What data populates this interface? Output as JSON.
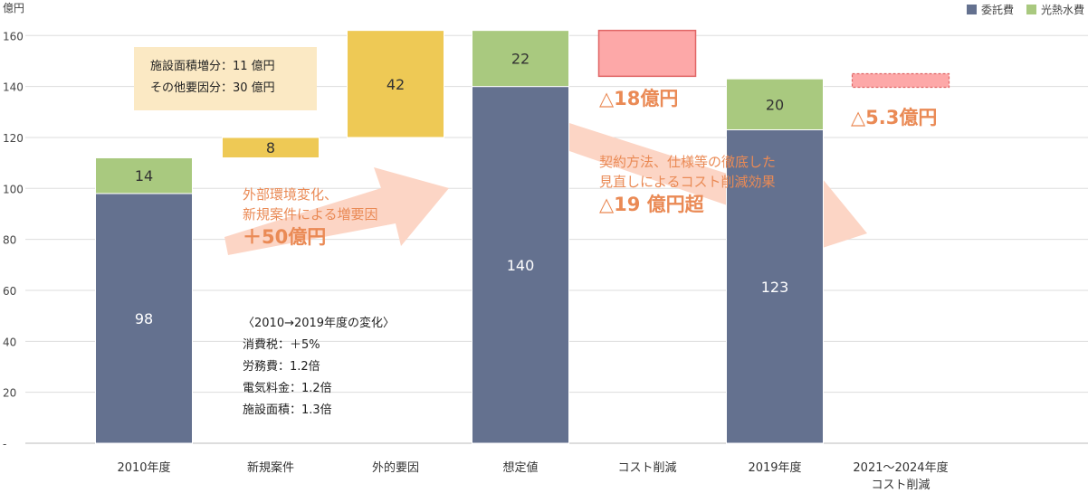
{
  "chart_data": {
    "type": "bar",
    "subtype": "waterfall-stacked",
    "y_unit_label": "億円",
    "ylim": [
      0,
      160
    ],
    "y_ticks": [
      "-",
      "20",
      "40",
      "60",
      "80",
      "100",
      "120",
      "140",
      "160"
    ],
    "grid": true,
    "legend_position": "top-right",
    "categories": [
      "2010年度",
      "新規案件",
      "外的要因",
      "想定値",
      "コスト削減",
      "2019年度",
      "2021～2024年度\nコスト削減"
    ],
    "series": [
      {
        "name": "委託費",
        "color": "#64718f"
      },
      {
        "name": "光熱水費",
        "color": "#a9c97f"
      }
    ],
    "bars": [
      {
        "category_index": 0,
        "segments": [
          {
            "series": "委託費",
            "base": 0,
            "value": 98,
            "label": "98",
            "color": "#64718f",
            "label_color": "#ffffff"
          },
          {
            "series": "光熱水費",
            "base": 98,
            "value": 14,
            "label": "14",
            "color": "#a9c97f",
            "label_color": "#333333"
          }
        ]
      },
      {
        "category_index": 1,
        "segments": [
          {
            "base": 112,
            "value": 8,
            "label": "8",
            "color": "#eec955",
            "label_color": "#333333"
          }
        ]
      },
      {
        "category_index": 2,
        "segments": [
          {
            "base": 120,
            "value": 42,
            "label": "42",
            "color": "#eec955",
            "label_color": "#333333"
          }
        ]
      },
      {
        "category_index": 3,
        "segments": [
          {
            "series": "委託費",
            "base": 0,
            "value": 140,
            "label": "140",
            "color": "#64718f",
            "label_color": "#ffffff"
          },
          {
            "series": "光熱水費",
            "base": 140,
            "value": 22,
            "label": "22",
            "color": "#a9c97f",
            "label_color": "#333333"
          }
        ]
      },
      {
        "category_index": 4,
        "segments": [
          {
            "base": 144,
            "value": 18,
            "label": "",
            "color": "#fda8a8",
            "stroke": "#e06565",
            "label_color": "#333333"
          }
        ]
      },
      {
        "category_index": 5,
        "segments": [
          {
            "series": "委託費",
            "base": 0,
            "value": 123,
            "label": "123",
            "color": "#64718f",
            "label_color": "#ffffff"
          },
          {
            "series": "光熱水費",
            "base": 123,
            "value": 20,
            "label": "20",
            "color": "#a9c97f",
            "label_color": "#333333"
          }
        ]
      },
      {
        "category_index": 6,
        "segments": [
          {
            "base": 139.7,
            "value": 5.3,
            "label": "",
            "color": "#fda8a8",
            "stroke": "#e06565",
            "dashed": true,
            "label_color": "#333333"
          }
        ]
      }
    ]
  },
  "annotations": {
    "callout_line1": "施設面積増分：11 億円",
    "callout_line2": "その他要因分：30 億円",
    "increase_line1": "外部環境変化、",
    "increase_line2": "新規案件による増要因",
    "increase_amount": "＋50億円",
    "cut_amount": "△18億円",
    "effect_line1": "契約方法、仕様等の徹底した",
    "effect_line2": "見直しによるコスト削減効果",
    "effect_amount": "△19 億円超",
    "future_cut_amount": "△5.3億円",
    "note_title": "〈2010→2019年度の変化〉",
    "note_line1": "消費税：＋5%",
    "note_line2": "労務費：1.2倍",
    "note_line3": "電気料金：1.2倍",
    "note_line4": "施設面積：1.3倍"
  },
  "colors": {
    "itaku": "#64718f",
    "kounetsu": "#a9c97f",
    "increase": "#eec955",
    "reduction": "#fda8a8",
    "arrow": "#fcd5c5",
    "accent_text": "#ea8a55"
  }
}
